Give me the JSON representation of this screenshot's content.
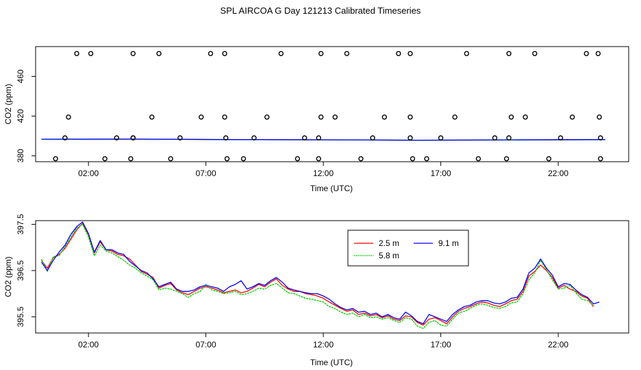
{
  "title": "SPL AIRCOA G  Day 121213  Calibrated Timeseries",
  "chart_data": [
    {
      "type": "scatter",
      "xlabel": "Time (UTC)",
      "ylabel": "CO2 (ppm)",
      "xlim": [
        -0.25,
        25.0
      ],
      "ylim": [
        374,
        490
      ],
      "xticks": [
        "02:00",
        "07:00",
        "12:00",
        "17:00",
        "22:00"
      ],
      "xtick_values": [
        2,
        7,
        12,
        17,
        22
      ],
      "yticks": [
        "380",
        "420",
        "460"
      ],
      "ytick_values": [
        380,
        420,
        460
      ],
      "grid": false,
      "points_o": {
        "x": [
          1.5,
          2.1,
          3.9,
          5.0,
          7.2,
          7.8,
          10.2,
          11.9,
          13.0,
          15.2,
          15.7,
          18.1,
          19.9,
          21.0,
          23.2,
          23.7,
          1.15,
          4.7,
          6.8,
          7.8,
          9.6,
          11.9,
          12.5,
          14.6,
          15.7,
          17.6,
          20.0,
          20.6,
          22.6,
          23.75,
          1.0,
          3.2,
          3.9,
          3.9,
          5.9,
          7.85,
          9.05,
          11.2,
          11.8,
          14.1,
          15.7,
          17.0,
          19.3,
          19.9,
          22.1,
          23.8,
          0.6,
          2.7,
          3.8,
          5.5,
          7.9,
          8.6,
          10.9,
          11.8,
          13.6,
          15.8,
          16.4,
          18.6,
          19.8,
          21.6,
          23.8
        ],
        "y": [
          483,
          483,
          483,
          483,
          483,
          483,
          483,
          483,
          483,
          483,
          483,
          483,
          483,
          483,
          483,
          483,
          419,
          419,
          419,
          419,
          419,
          419,
          419,
          419,
          419,
          419,
          419,
          419,
          419,
          419,
          398,
          398,
          398,
          398,
          398,
          398,
          398,
          398,
          398,
          398,
          398,
          398,
          398,
          398,
          398,
          398,
          377,
          377,
          377,
          377,
          377,
          377,
          377,
          377,
          377,
          377,
          377,
          377,
          377,
          377,
          377
        ]
      },
      "series": [
        {
          "color": "#ff0000",
          "x": [
            0,
            4,
            8,
            12,
            16,
            20,
            24
          ],
          "values": [
            396.6,
            396.8,
            396.2,
            396.0,
            395.6,
            395.9,
            396.2
          ]
        },
        {
          "color": "#00cc00",
          "x": [
            0,
            4,
            8,
            12,
            16,
            20,
            24
          ],
          "values": [
            396.6,
            396.7,
            396.2,
            396.0,
            395.6,
            395.9,
            396.2
          ]
        },
        {
          "color": "#0000ff",
          "x": [
            0,
            4,
            8,
            12,
            16,
            20,
            24
          ],
          "values": [
            396.7,
            396.8,
            396.3,
            396.1,
            395.7,
            396.0,
            396.3
          ]
        }
      ]
    },
    {
      "type": "line",
      "xlabel": "Time (UTC)",
      "ylabel": "CO2 (ppm)",
      "xlim": [
        -0.25,
        25.0
      ],
      "ylim": [
        395.15,
        397.58
      ],
      "xticks": [
        "02:00",
        "07:00",
        "12:00",
        "17:00",
        "22:00"
      ],
      "xtick_values": [
        2,
        7,
        12,
        17,
        22
      ],
      "yticks": [
        "395.5",
        "396.5",
        "397.5"
      ],
      "ytick_values": [
        395.5,
        396.5,
        397.5
      ],
      "grid": false,
      "legend_position": "top-center",
      "series": [
        {
          "name": "2.5 m",
          "color": "#ff0000",
          "x": [
            0.0,
            0.25,
            0.5,
            0.75,
            1.0,
            1.25,
            1.5,
            1.75,
            2.0,
            2.25,
            2.5,
            2.75,
            3.0,
            3.25,
            3.5,
            3.75,
            4.0,
            4.25,
            4.5,
            4.75,
            5.0,
            5.25,
            5.5,
            5.75,
            6.0,
            6.25,
            6.5,
            6.75,
            7.0,
            7.25,
            7.5,
            7.75,
            8.0,
            8.25,
            8.5,
            8.75,
            9.0,
            9.25,
            9.5,
            9.75,
            10.0,
            10.25,
            10.5,
            10.75,
            11.0,
            11.25,
            11.5,
            11.75,
            12.0,
            12.25,
            12.5,
            12.75,
            13.0,
            13.25,
            13.5,
            13.75,
            14.0,
            14.25,
            14.5,
            14.75,
            15.0,
            15.25,
            15.5,
            15.75,
            16.0,
            16.25,
            16.5,
            16.75,
            17.0,
            17.25,
            17.5,
            17.75,
            18.0,
            18.25,
            18.5,
            18.75,
            19.0,
            19.25,
            19.5,
            19.75,
            20.0,
            20.25,
            20.5,
            20.75,
            21.0,
            21.25,
            21.5,
            21.75,
            22.0,
            22.25,
            22.5,
            22.75,
            23.0,
            23.25,
            23.5
          ],
          "values": [
            396.72,
            396.55,
            396.78,
            396.85,
            396.98,
            397.18,
            397.38,
            397.52,
            397.28,
            396.88,
            397.12,
            396.95,
            396.92,
            396.85,
            396.82,
            396.75,
            396.62,
            396.48,
            396.42,
            396.35,
            396.12,
            396.18,
            396.22,
            396.08,
            396.02,
            395.98,
            396.05,
            396.12,
            396.15,
            396.12,
            396.08,
            396.02,
            396.05,
            396.08,
            396.02,
            396.05,
            396.12,
            396.2,
            396.15,
            396.25,
            396.32,
            396.18,
            396.1,
            396.05,
            396.05,
            396.0,
            395.98,
            395.95,
            395.9,
            395.82,
            395.75,
            395.68,
            395.62,
            395.65,
            395.55,
            395.58,
            395.52,
            395.55,
            395.48,
            395.52,
            395.45,
            395.42,
            395.52,
            395.5,
            395.38,
            395.32,
            395.45,
            395.48,
            395.42,
            395.35,
            395.5,
            395.62,
            395.68,
            395.72,
            395.78,
            395.82,
            395.8,
            395.75,
            395.72,
            395.78,
            395.85,
            395.88,
            396.05,
            396.38,
            396.48,
            396.62,
            396.5,
            396.35,
            396.12,
            396.18,
            396.1,
            396.05,
            395.95,
            395.9,
            395.72
          ]
        },
        {
          "name": "5.8 m",
          "color": "#00cc00",
          "x": [
            0.0,
            0.25,
            0.5,
            0.75,
            1.0,
            1.25,
            1.5,
            1.75,
            2.0,
            2.25,
            2.5,
            2.75,
            3.0,
            3.25,
            3.5,
            3.75,
            4.0,
            4.25,
            4.5,
            4.75,
            5.0,
            5.25,
            5.5,
            5.75,
            6.0,
            6.25,
            6.5,
            6.75,
            7.0,
            7.25,
            7.5,
            7.75,
            8.0,
            8.25,
            8.5,
            8.75,
            9.0,
            9.25,
            9.5,
            9.75,
            10.0,
            10.25,
            10.5,
            10.75,
            11.0,
            11.25,
            11.5,
            11.75,
            12.0,
            12.25,
            12.5,
            12.75,
            13.0,
            13.25,
            13.5,
            13.75,
            14.0,
            14.25,
            14.5,
            14.75,
            15.0,
            15.25,
            15.5,
            15.75,
            16.0,
            16.25,
            16.5,
            16.75,
            17.0,
            17.25,
            17.5,
            17.75,
            18.0,
            18.25,
            18.5,
            18.75,
            19.0,
            19.25,
            19.5,
            19.75,
            20.0,
            20.25,
            20.5,
            20.75,
            21.0,
            21.25,
            21.5,
            21.75,
            22.0,
            22.25,
            22.5,
            22.75,
            23.0,
            23.25,
            23.5
          ],
          "values": [
            396.75,
            396.48,
            396.8,
            396.82,
            397.02,
            397.22,
            397.42,
            397.5,
            397.22,
            396.82,
            397.05,
            396.92,
            396.88,
            396.8,
            396.72,
            396.62,
            396.55,
            396.45,
            396.38,
            396.3,
            396.08,
            396.12,
            396.1,
            396.05,
            396.0,
            395.92,
            396.0,
            396.05,
            396.2,
            396.08,
            396.05,
            396.0,
            396.02,
            396.05,
            395.98,
            396.0,
            396.05,
            396.12,
            396.1,
            396.18,
            396.22,
            396.12,
            396.02,
            396.0,
            395.95,
            395.9,
            395.88,
            395.85,
            395.82,
            395.72,
            395.68,
            395.6,
            395.55,
            395.58,
            395.5,
            395.55,
            395.48,
            395.5,
            395.45,
            395.48,
            395.42,
            395.38,
            395.48,
            395.45,
            395.3,
            395.25,
            395.38,
            395.42,
            395.32,
            395.3,
            395.45,
            395.58,
            395.62,
            395.68,
            395.75,
            395.78,
            395.75,
            395.7,
            395.68,
            395.72,
            395.8,
            395.82,
            396.0,
            396.3,
            396.45,
            396.72,
            396.52,
            396.3,
            396.1,
            396.12,
            396.18,
            396.02,
            395.88,
            395.85,
            395.75
          ]
        },
        {
          "name": "9.1 m",
          "color": "#0000ff",
          "x": [
            0.0,
            0.25,
            0.5,
            0.75,
            1.0,
            1.25,
            1.5,
            1.75,
            2.0,
            2.25,
            2.5,
            2.75,
            3.0,
            3.25,
            3.5,
            3.75,
            4.0,
            4.25,
            4.5,
            4.75,
            5.0,
            5.25,
            5.5,
            5.75,
            6.0,
            6.25,
            6.5,
            6.75,
            7.0,
            7.25,
            7.5,
            7.75,
            8.0,
            8.25,
            8.5,
            8.75,
            9.0,
            9.25,
            9.5,
            9.75,
            10.0,
            10.25,
            10.5,
            10.75,
            11.0,
            11.25,
            11.5,
            11.75,
            12.0,
            12.25,
            12.5,
            12.75,
            13.0,
            13.25,
            13.5,
            13.75,
            14.0,
            14.25,
            14.5,
            14.75,
            15.0,
            15.25,
            15.5,
            15.75,
            16.0,
            16.25,
            16.5,
            16.75,
            17.0,
            17.25,
            17.5,
            17.75,
            18.0,
            18.25,
            18.5,
            18.75,
            19.0,
            19.25,
            19.5,
            19.75,
            20.0,
            20.25,
            20.5,
            20.75,
            21.0,
            21.25,
            21.5,
            21.75,
            22.0,
            22.25,
            22.5,
            22.75,
            23.0,
            23.25,
            23.5,
            23.75
          ],
          "values": [
            396.68,
            396.5,
            396.72,
            396.9,
            397.05,
            397.28,
            397.45,
            397.55,
            397.3,
            396.9,
            397.15,
            396.95,
            396.95,
            396.88,
            396.85,
            396.7,
            396.6,
            396.5,
            396.45,
            396.32,
            396.15,
            396.2,
            396.25,
            396.1,
            396.05,
            396.05,
            396.08,
            396.15,
            396.18,
            396.15,
            396.12,
            396.05,
            396.15,
            396.2,
            396.28,
            396.1,
            396.15,
            396.22,
            396.18,
            396.28,
            396.35,
            396.25,
            396.12,
            396.08,
            396.05,
            396.02,
            396.0,
            396.0,
            395.95,
            395.88,
            395.78,
            395.7,
            395.65,
            395.68,
            395.6,
            395.62,
            395.55,
            395.58,
            395.5,
            395.55,
            395.48,
            395.45,
            395.6,
            395.52,
            395.4,
            395.35,
            395.55,
            395.5,
            395.45,
            395.4,
            395.55,
            395.65,
            395.72,
            395.75,
            395.82,
            395.85,
            395.85,
            395.8,
            395.78,
            395.82,
            395.9,
            395.92,
            396.1,
            396.45,
            396.55,
            396.75,
            396.55,
            396.4,
            396.15,
            396.22,
            396.2,
            396.08,
            395.98,
            395.92,
            395.78,
            395.82
          ]
        }
      ]
    }
  ]
}
